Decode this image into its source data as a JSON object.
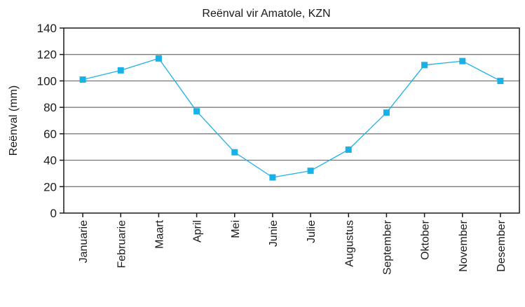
{
  "chart_data": {
    "type": "line",
    "title": "Reënval vir Amatole, KZN",
    "xlabel": "",
    "ylabel": "Reënval (mm)",
    "ylim": [
      0,
      140
    ],
    "yticks": [
      0,
      20,
      40,
      60,
      80,
      100,
      120,
      140
    ],
    "grid": true,
    "categories": [
      "Januarie",
      "Februarie",
      "Maart",
      "April",
      "Mei",
      "Junie",
      "Julie",
      "Augustus",
      "September",
      "Oktober",
      "November",
      "Desember"
    ],
    "series": [
      {
        "values": [
          101,
          108,
          117,
          77,
          46,
          27,
          32,
          48,
          76,
          112,
          115,
          100
        ]
      }
    ],
    "colors": {
      "line": "#1ab0e8",
      "marker": "#1ab0e8",
      "grid": "#6e6e6e",
      "axis": "#1a1a1a"
    }
  }
}
